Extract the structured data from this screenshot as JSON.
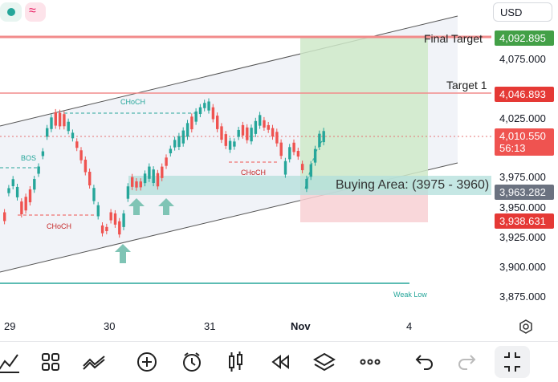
{
  "toolbar": {
    "currency": "USD"
  },
  "axis": {
    "price_ticks": [
      "4,075.000",
      "4,025.000",
      "3,975.000",
      "3,950.000",
      "3,925.000",
      "3,900.000",
      "3,875.000"
    ],
    "time_ticks": [
      "29",
      "30",
      "31",
      "Nov",
      "4"
    ]
  },
  "badges": {
    "final_target": "4,092.895",
    "target_1": "4,046.893",
    "last_price": "4,010.550",
    "countdown": "56:13",
    "buying_level": "3,963.282",
    "stop_level": "3,938.631"
  },
  "annotations": {
    "final_target_label": "Final Target",
    "target_1_label": "Target 1",
    "buying_area": "Buying Area: (3975 - 3960)",
    "choch_top": "CHoCH",
    "choch_mid": "CHoCH",
    "choch_left": "CHoCH",
    "bos": "BOS",
    "weak_low": "Weak Low"
  },
  "colors": {
    "bull": "#26a69a",
    "bear": "#ef5350",
    "target": "#4caf50",
    "stop": "#e53935",
    "buy_zone": "#b2dfdb"
  }
}
